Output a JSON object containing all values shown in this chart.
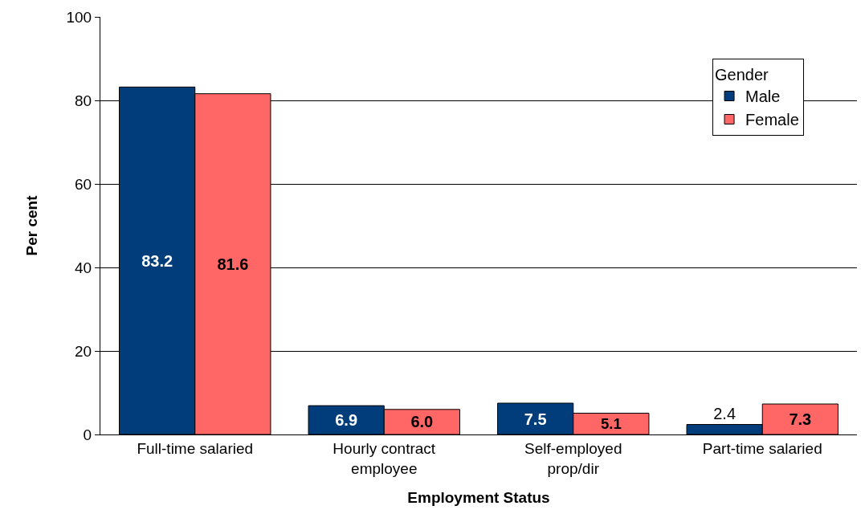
{
  "chart_data": {
    "type": "bar",
    "xlabel": "Employment Status",
    "ylabel": "Per cent",
    "legend_title": "Gender",
    "categories": [
      "Full-time salaried",
      "Hourly contract employee",
      "Self-employed prop/dir",
      "Part-time salaried"
    ],
    "series": [
      {
        "name": "Male",
        "color": "#003d7a",
        "values": [
          83.2,
          6.9,
          7.5,
          2.4
        ],
        "value_labels": [
          "83.2",
          "6.9",
          "7.5",
          "2.4"
        ]
      },
      {
        "name": "Female",
        "color": "#ff6666",
        "values": [
          81.6,
          6.0,
          5.1,
          7.3
        ],
        "value_labels": [
          "81.6",
          "6.0",
          "5.1",
          "7.3"
        ]
      }
    ],
    "ylim": [
      0,
      100
    ],
    "yticks": [
      0,
      20,
      40,
      60,
      80,
      100
    ],
    "grid": "y",
    "legend": "top right"
  }
}
